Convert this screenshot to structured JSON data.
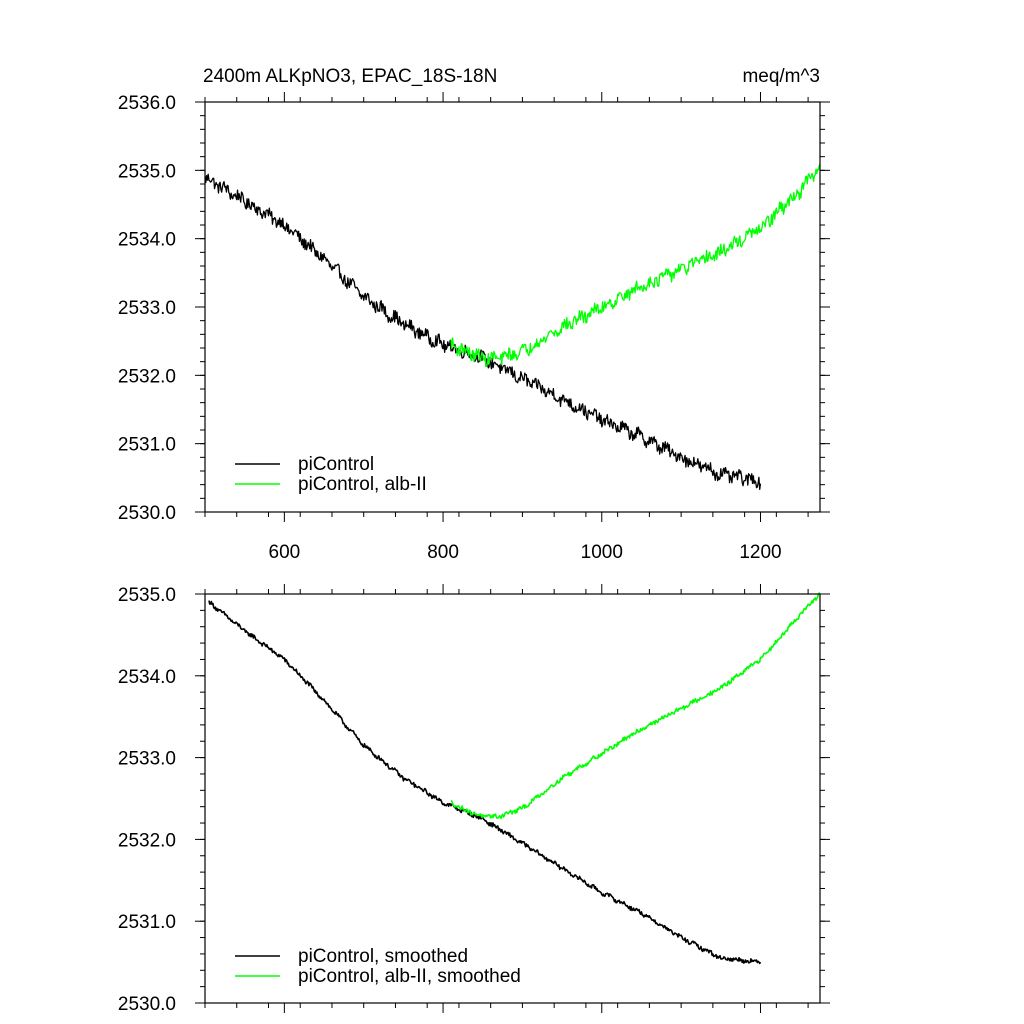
{
  "header": {
    "title": "2400m ALKpNO3, EPAC_18S-18N",
    "units": "meq/m^3"
  },
  "colors": {
    "picontrol": "#000000",
    "alb_ii": "#00ff00"
  },
  "chart_data": [
    {
      "type": "line",
      "title": "2400m ALKpNO3, EPAC_18S-18N",
      "units": "meq/m^3",
      "xlim": [
        500,
        1275
      ],
      "ylim": [
        2530.0,
        2536.0
      ],
      "x_ticks": [
        600,
        800,
        1000,
        1200
      ],
      "x_tick_labels": [
        "600",
        "800",
        "1000",
        "1200"
      ],
      "y_ticks": [
        2530.0,
        2531.0,
        2532.0,
        2533.0,
        2534.0,
        2535.0,
        2536.0
      ],
      "y_tick_labels": [
        "2530.0",
        "2531.0",
        "2532.0",
        "2533.0",
        "2534.0",
        "2535.0",
        "2536.0"
      ],
      "legend_position": "bottom-left",
      "grid": false,
      "series": [
        {
          "name": "piControl",
          "color": "#000000",
          "noise": 0.09,
          "x": [
            500,
            550,
            600,
            650,
            700,
            750,
            800,
            850,
            900,
            950,
            1000,
            1050,
            1100,
            1150,
            1200
          ],
          "y": [
            2534.9,
            2534.55,
            2534.2,
            2533.7,
            2533.15,
            2532.75,
            2532.45,
            2532.25,
            2531.95,
            2531.65,
            2531.35,
            2531.1,
            2530.8,
            2530.55,
            2530.45
          ]
        },
        {
          "name": "piControl, alb-II",
          "color": "#00ff00",
          "noise": 0.09,
          "x": [
            810,
            830,
            850,
            870,
            900,
            950,
            1000,
            1050,
            1100,
            1150,
            1200,
            1250,
            1275
          ],
          "y": [
            2532.45,
            2532.35,
            2532.25,
            2532.25,
            2532.35,
            2532.7,
            2533.0,
            2533.3,
            2533.55,
            2533.8,
            2534.15,
            2534.7,
            2535.05
          ]
        }
      ]
    },
    {
      "type": "line",
      "xlim": [
        500,
        1275
      ],
      "ylim": [
        2530.0,
        2535.0
      ],
      "x_ticks": [
        600,
        800,
        1000,
        1200
      ],
      "x_tick_labels": [],
      "y_ticks": [
        2530.0,
        2531.0,
        2532.0,
        2533.0,
        2534.0,
        2535.0
      ],
      "y_tick_labels": [
        "2530.0",
        "2531.0",
        "2532.0",
        "2533.0",
        "2534.0",
        "2535.0"
      ],
      "legend_position": "bottom-left",
      "grid": false,
      "series": [
        {
          "name": "piControl, smoothed",
          "color": "#000000",
          "noise": 0.025,
          "x": [
            505,
            550,
            600,
            650,
            700,
            750,
            800,
            850,
            900,
            950,
            1000,
            1050,
            1100,
            1150,
            1200
          ],
          "y": [
            2534.9,
            2534.55,
            2534.2,
            2533.7,
            2533.15,
            2532.75,
            2532.45,
            2532.25,
            2531.95,
            2531.65,
            2531.35,
            2531.1,
            2530.8,
            2530.55,
            2530.5
          ]
        },
        {
          "name": "piControl, alb-II, smoothed",
          "color": "#00ff00",
          "noise": 0.025,
          "x": [
            810,
            830,
            850,
            870,
            900,
            950,
            1000,
            1050,
            1100,
            1150,
            1200,
            1250,
            1275
          ],
          "y": [
            2532.45,
            2532.35,
            2532.28,
            2532.28,
            2532.38,
            2532.75,
            2533.05,
            2533.35,
            2533.6,
            2533.85,
            2534.2,
            2534.75,
            2535.0
          ]
        }
      ]
    }
  ]
}
